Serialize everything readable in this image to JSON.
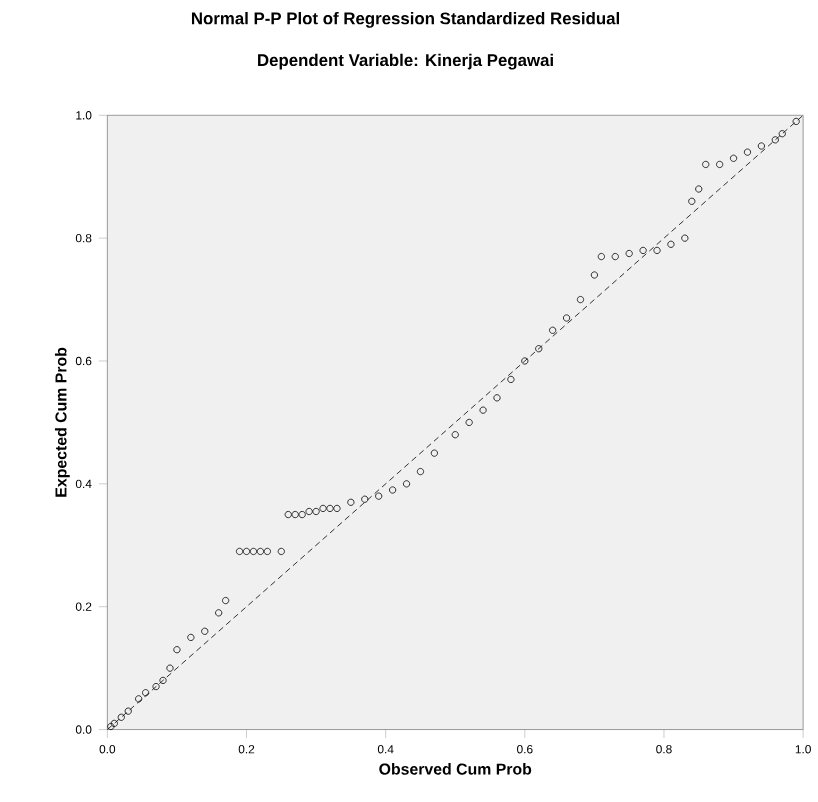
{
  "chart_data": {
    "type": "scatter",
    "title": "Normal P-P Plot of Regression Standardized Residual",
    "subtitle": "Dependent Variable: Kinerja Pegawai",
    "xlabel": "Observed Cum Prob",
    "ylabel": "Expected Cum Prob",
    "xlim": [
      0,
      1
    ],
    "ylim": [
      0,
      1
    ],
    "xticks": [
      {
        "value": 0,
        "label": "0.0"
      },
      {
        "value": 0.2,
        "label": "0.2"
      },
      {
        "value": 0.4,
        "label": "0.4"
      },
      {
        "value": 0.6,
        "label": "0.6"
      },
      {
        "value": 0.8,
        "label": "0.8"
      },
      {
        "value": 1,
        "label": "1.0"
      }
    ],
    "yticks": [
      {
        "value": 0,
        "label": "0.0"
      },
      {
        "value": 0.2,
        "label": "0.2"
      },
      {
        "value": 0.4,
        "label": "0.4"
      },
      {
        "value": 0.6,
        "label": "0.6"
      },
      {
        "value": 0.8,
        "label": "0.8"
      },
      {
        "value": 1,
        "label": "1.0"
      }
    ],
    "grid": false,
    "marker": "circle",
    "series": [
      {
        "color": "#000000",
        "x": [
          0.005,
          0.01,
          0.02,
          0.03,
          0.045,
          0.055,
          0.07,
          0.08,
          0.09,
          0.1,
          0.12,
          0.14,
          0.16,
          0.17,
          0.19,
          0.2,
          0.21,
          0.22,
          0.23,
          0.25,
          0.26,
          0.27,
          0.28,
          0.29,
          0.3,
          0.31,
          0.32,
          0.33,
          0.35,
          0.37,
          0.39,
          0.41,
          0.43,
          0.45,
          0.47,
          0.5,
          0.52,
          0.54,
          0.56,
          0.58,
          0.6,
          0.62,
          0.64,
          0.66,
          0.68,
          0.7,
          0.71,
          0.73,
          0.75,
          0.77,
          0.79,
          0.81,
          0.83,
          0.84,
          0.85,
          0.86,
          0.88,
          0.9,
          0.92,
          0.94,
          0.96,
          0.97,
          0.99
        ],
        "values": [
          0.005,
          0.01,
          0.02,
          0.03,
          0.05,
          0.06,
          0.07,
          0.08,
          0.1,
          0.13,
          0.15,
          0.16,
          0.19,
          0.21,
          0.29,
          0.29,
          0.29,
          0.29,
          0.29,
          0.29,
          0.35,
          0.35,
          0.35,
          0.355,
          0.355,
          0.36,
          0.36,
          0.36,
          0.37,
          0.375,
          0.38,
          0.39,
          0.4,
          0.42,
          0.45,
          0.48,
          0.5,
          0.52,
          0.54,
          0.57,
          0.6,
          0.62,
          0.65,
          0.67,
          0.7,
          0.74,
          0.77,
          0.77,
          0.775,
          0.78,
          0.78,
          0.79,
          0.8,
          0.86,
          0.88,
          0.92,
          0.92,
          0.93,
          0.94,
          0.95,
          0.96,
          0.97,
          0.99
        ]
      },
      {
        "type": "line",
        "color": "#000000",
        "line_style": "dashed",
        "marker": "none",
        "x": [
          0,
          1
        ],
        "values": [
          0,
          1
        ]
      }
    ]
  }
}
